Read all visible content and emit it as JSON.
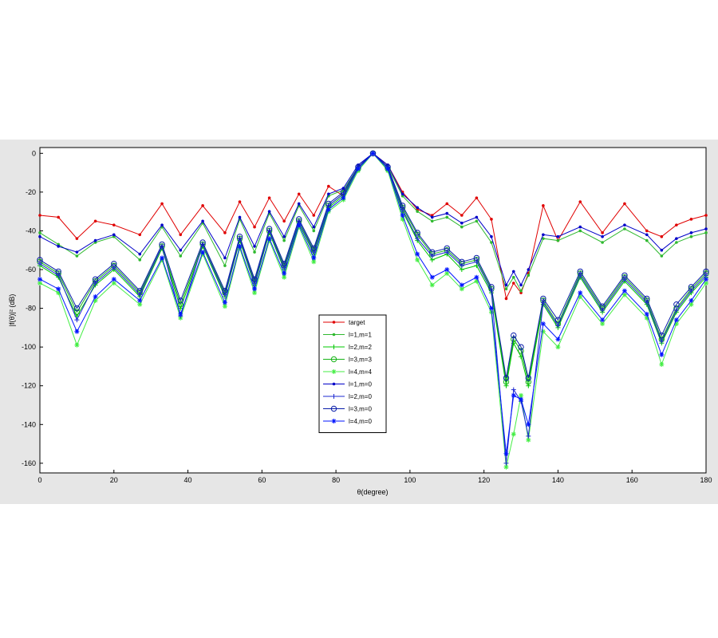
{
  "chart_data": {
    "type": "line",
    "xlabel": "θ(degree)",
    "ylabel": "|f(θ)|² (dB)",
    "xlim": [
      0,
      180
    ],
    "ylim": [
      -165,
      3
    ],
    "xticks": [
      0,
      20,
      40,
      60,
      80,
      100,
      120,
      140,
      160,
      180
    ],
    "yticks": [
      0,
      -20,
      -40,
      -60,
      -80,
      -100,
      -120,
      -140,
      -160
    ],
    "grid": false,
    "legend_position": "center-left",
    "series": [
      {
        "name": "target",
        "color": "#e00000",
        "marker": "dot",
        "x": [
          0,
          5,
          10,
          15,
          20,
          27,
          33,
          38,
          44,
          50,
          54,
          58,
          62,
          66,
          70,
          74,
          78,
          82,
          86,
          90,
          94,
          98,
          102,
          106,
          110,
          114,
          118,
          122,
          126,
          128,
          130,
          132,
          136,
          140,
          146,
          152,
          158,
          164,
          168,
          172,
          176,
          180
        ],
        "y": [
          -32,
          -33,
          -44,
          -35,
          -37,
          -42,
          -26,
          -42,
          -27,
          -41,
          -25,
          -38,
          -23,
          -35,
          -21,
          -32,
          -17,
          -22,
          -7,
          0,
          -6,
          -20,
          -29,
          -32,
          -26,
          -32,
          -23,
          -34,
          -75,
          -67,
          -72,
          -62,
          -27,
          -45,
          -25,
          -41,
          -26,
          -40,
          -43,
          -37,
          -34,
          -32
        ]
      },
      {
        "name": "l=1,m=1",
        "color": "#2fb92f",
        "marker": "dot",
        "x": [
          0,
          5,
          10,
          15,
          20,
          27,
          33,
          38,
          44,
          50,
          54,
          58,
          62,
          66,
          70,
          74,
          78,
          82,
          86,
          90,
          94,
          98,
          102,
          106,
          110,
          114,
          118,
          122,
          126,
          128,
          130,
          132,
          136,
          140,
          146,
          152,
          158,
          164,
          168,
          172,
          176,
          180
        ],
        "y": [
          -41,
          -47,
          -53,
          -46,
          -43,
          -55,
          -38,
          -53,
          -36,
          -58,
          -34,
          -51,
          -31,
          -45,
          -27,
          -40,
          -22,
          -19,
          -7,
          0,
          -7,
          -22,
          -30,
          -35,
          -33,
          -38,
          -35,
          -46,
          -70,
          -64,
          -71,
          -63,
          -44,
          -45,
          -40,
          -46,
          -39,
          -45,
          -53,
          -46,
          -43,
          -41
        ]
      },
      {
        "name": "l=2,m=2",
        "color": "#00c800",
        "marker": "plus",
        "x": [
          0,
          5,
          10,
          15,
          20,
          27,
          33,
          38,
          44,
          50,
          54,
          58,
          62,
          66,
          70,
          74,
          78,
          82,
          86,
          90,
          94,
          98,
          102,
          106,
          110,
          114,
          118,
          122,
          126,
          128,
          130,
          132,
          136,
          140,
          146,
          152,
          158,
          164,
          168,
          172,
          176,
          180
        ],
        "y": [
          -58,
          -64,
          -84,
          -68,
          -60,
          -74,
          -49,
          -80,
          -48,
          -74,
          -45,
          -68,
          -41,
          -60,
          -36,
          -52,
          -28,
          -22,
          -8,
          0,
          -8,
          -30,
          -45,
          -55,
          -52,
          -60,
          -58,
          -72,
          -120,
          -98,
          -105,
          -120,
          -78,
          -90,
          -64,
          -82,
          -66,
          -78,
          -98,
          -82,
          -72,
          -64
        ]
      },
      {
        "name": "l=3,m=3",
        "color": "#18b418",
        "marker": "circle",
        "x": [
          0,
          5,
          10,
          15,
          20,
          27,
          33,
          38,
          44,
          50,
          54,
          58,
          62,
          66,
          70,
          74,
          78,
          82,
          86,
          90,
          94,
          98,
          102,
          106,
          110,
          114,
          118,
          122,
          126,
          128,
          130,
          132,
          136,
          140,
          146,
          152,
          158,
          164,
          168,
          172,
          176,
          180
        ],
        "y": [
          -56,
          -62,
          -82,
          -66,
          -58,
          -72,
          -48,
          -78,
          -47,
          -72,
          -44,
          -66,
          -40,
          -58,
          -35,
          -50,
          -27,
          -21,
          -8,
          0,
          -8,
          -28,
          -42,
          -52,
          -50,
          -57,
          -55,
          -70,
          -118,
          -96,
          -102,
          -118,
          -76,
          -88,
          -62,
          -80,
          -64,
          -76,
          -96,
          -80,
          -70,
          -62
        ]
      },
      {
        "name": "l=4,m=4",
        "color": "#44ee44",
        "marker": "asterisk",
        "x": [
          0,
          5,
          10,
          15,
          20,
          27,
          33,
          38,
          44,
          50,
          54,
          58,
          62,
          66,
          70,
          74,
          78,
          82,
          86,
          90,
          94,
          98,
          102,
          106,
          110,
          114,
          118,
          122,
          126,
          128,
          130,
          132,
          136,
          140,
          146,
          152,
          158,
          164,
          168,
          172,
          176,
          180
        ],
        "y": [
          -67,
          -72,
          -99,
          -76,
          -67,
          -78,
          -55,
          -85,
          -52,
          -79,
          -49,
          -72,
          -45,
          -64,
          -38,
          -56,
          -30,
          -24,
          -9,
          0,
          -9,
          -34,
          -55,
          -68,
          -62,
          -70,
          -66,
          -82,
          -162,
          -145,
          -125,
          -148,
          -92,
          -100,
          -74,
          -88,
          -73,
          -85,
          -109,
          -88,
          -78,
          -67
        ]
      },
      {
        "name": "l=1,m=0",
        "color": "#0000c8",
        "marker": "dot",
        "x": [
          0,
          5,
          10,
          15,
          20,
          27,
          33,
          38,
          44,
          50,
          54,
          58,
          62,
          66,
          70,
          74,
          78,
          82,
          86,
          90,
          94,
          98,
          102,
          106,
          110,
          114,
          118,
          122,
          126,
          128,
          130,
          132,
          136,
          140,
          146,
          152,
          158,
          164,
          168,
          172,
          176,
          180
        ],
        "y": [
          -43,
          -48,
          -51,
          -45,
          -42,
          -52,
          -37,
          -50,
          -35,
          -54,
          -33,
          -48,
          -30,
          -43,
          -26,
          -38,
          -21,
          -18,
          -6,
          0,
          -6,
          -21,
          -28,
          -33,
          -31,
          -36,
          -33,
          -43,
          -68,
          -61,
          -68,
          -60,
          -42,
          -43,
          -38,
          -43,
          -37,
          -42,
          -50,
          -44,
          -41,
          -39
        ]
      },
      {
        "name": "l=2,m=0",
        "color": "#1e28d2",
        "marker": "plus",
        "x": [
          0,
          5,
          10,
          15,
          20,
          27,
          33,
          38,
          44,
          50,
          54,
          58,
          62,
          66,
          70,
          74,
          78,
          82,
          86,
          90,
          94,
          98,
          102,
          106,
          110,
          114,
          118,
          122,
          126,
          128,
          130,
          132,
          136,
          140,
          146,
          152,
          158,
          164,
          168,
          172,
          176,
          180
        ],
        "y": [
          -57,
          -63,
          -86,
          -67,
          -59,
          -73,
          -48,
          -84,
          -47,
          -73,
          -44,
          -67,
          -40,
          -59,
          -35,
          -51,
          -27,
          -21,
          -7,
          0,
          -7,
          -29,
          -44,
          -53,
          -51,
          -58,
          -56,
          -71,
          -160,
          -122,
          -128,
          -146,
          -77,
          -89,
          -63,
          -81,
          -65,
          -77,
          -97,
          -81,
          -71,
          -63
        ]
      },
      {
        "name": "l=3,m=0",
        "color": "#0a1eaa",
        "marker": "circle",
        "x": [
          0,
          5,
          10,
          15,
          20,
          27,
          33,
          38,
          44,
          50,
          54,
          58,
          62,
          66,
          70,
          74,
          78,
          82,
          86,
          90,
          94,
          98,
          102,
          106,
          110,
          114,
          118,
          122,
          126,
          128,
          130,
          132,
          136,
          140,
          146,
          152,
          158,
          164,
          168,
          172,
          176,
          180
        ],
        "y": [
          -55,
          -61,
          -80,
          -65,
          -57,
          -71,
          -47,
          -76,
          -46,
          -71,
          -43,
          -65,
          -39,
          -57,
          -34,
          -49,
          -26,
          -20,
          -7,
          0,
          -7,
          -27,
          -41,
          -51,
          -49,
          -56,
          -54,
          -69,
          -116,
          -94,
          -100,
          -116,
          -75,
          -86,
          -61,
          -79,
          -63,
          -75,
          -94,
          -78,
          -69,
          -61
        ]
      },
      {
        "name": "l=4,m=0",
        "color": "#0014ff",
        "marker": "asterisk",
        "x": [
          0,
          5,
          10,
          15,
          20,
          27,
          33,
          38,
          44,
          50,
          54,
          58,
          62,
          66,
          70,
          74,
          78,
          82,
          86,
          90,
          94,
          98,
          102,
          106,
          110,
          114,
          118,
          122,
          126,
          128,
          130,
          132,
          136,
          140,
          146,
          152,
          158,
          164,
          168,
          172,
          176,
          180
        ],
        "y": [
          -65,
          -70,
          -92,
          -74,
          -65,
          -76,
          -54,
          -83,
          -51,
          -77,
          -48,
          -70,
          -44,
          -62,
          -37,
          -54,
          -29,
          -23,
          -8,
          0,
          -8,
          -32,
          -52,
          -64,
          -60,
          -68,
          -64,
          -80,
          -155,
          -125,
          -127,
          -140,
          -88,
          -96,
          -72,
          -86,
          -71,
          -83,
          -104,
          -86,
          -76,
          -65
        ]
      }
    ]
  }
}
